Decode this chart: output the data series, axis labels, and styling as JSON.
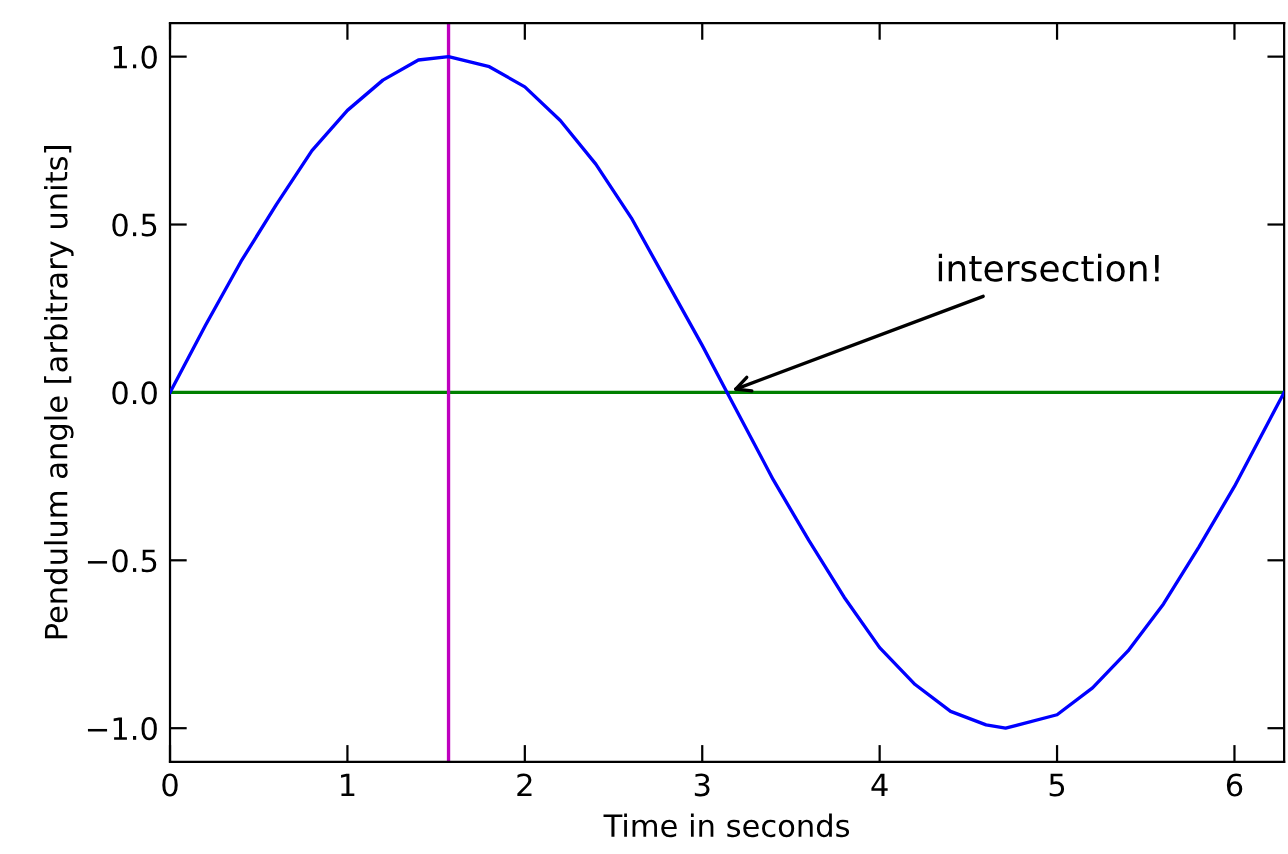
{
  "chart_data": {
    "type": "line",
    "xlabel": "Time in seconds",
    "ylabel": "Pendulum angle [arbitrary units]",
    "series": [
      {
        "color": "#0000ff",
        "x": [
          0,
          0.2,
          0.4,
          0.6,
          0.8,
          1.0,
          1.2,
          1.4,
          1.57,
          1.8,
          2.0,
          2.2,
          2.4,
          2.6,
          2.8,
          3.0,
          3.14,
          3.4,
          3.6,
          3.8,
          4.0,
          4.2,
          4.4,
          4.6,
          4.71,
          5.0,
          5.2,
          5.4,
          5.6,
          5.8,
          6.0,
          6.2,
          6.28
        ],
        "values": [
          0,
          0.2,
          0.39,
          0.56,
          0.72,
          0.84,
          0.93,
          0.99,
          1.0,
          0.97,
          0.91,
          0.81,
          0.68,
          0.52,
          0.33,
          0.14,
          0,
          -0.26,
          -0.44,
          -0.61,
          -0.76,
          -0.87,
          -0.95,
          -0.99,
          -1.0,
          -0.96,
          -0.88,
          -0.77,
          -0.63,
          -0.46,
          -0.28,
          -0.08,
          0
        ]
      }
    ],
    "ref_lines": [
      {
        "axis": "y",
        "value": 0,
        "color": "#008000"
      },
      {
        "axis": "x",
        "value": 1.57,
        "color": "#bf00bf"
      }
    ],
    "annotations": [
      {
        "text": "intersection!",
        "x": 3.14,
        "y": 0
      }
    ],
    "xlim": [
      0,
      6.28
    ],
    "ylim": [
      -1.1,
      1.1
    ],
    "xticks": [
      0,
      1,
      2,
      3,
      4,
      5,
      6
    ],
    "yticks": [
      {
        "value": -1.0,
        "label": "−1.0"
      },
      {
        "value": -0.5,
        "label": "−0.5"
      },
      {
        "value": 0.0,
        "label": "0.0"
      },
      {
        "value": 0.5,
        "label": "0.5"
      },
      {
        "value": 1.0,
        "label": "1.0"
      }
    ],
    "grid": false,
    "marker": "none",
    "line_style": "solid"
  }
}
